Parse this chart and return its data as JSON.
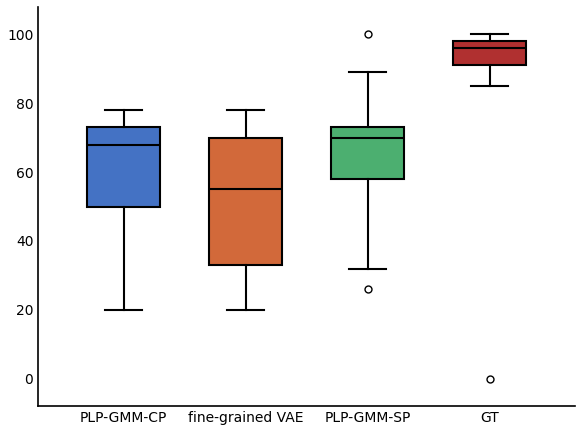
{
  "boxes": [
    {
      "label": "PLP-GMM-CP",
      "color": "#4472C4",
      "q1": 50,
      "median": 68,
      "q3": 73,
      "whisker_low": 20,
      "whisker_high": 78,
      "fliers": []
    },
    {
      "label": "fine-grained VAE",
      "color": "#D2693A",
      "q1": 33,
      "median": 55,
      "q3": 70,
      "whisker_low": 20,
      "whisker_high": 78,
      "fliers": []
    },
    {
      "label": "PLP-GMM-SP",
      "color": "#4CAF70",
      "q1": 58,
      "median": 70,
      "q3": 73,
      "whisker_low": 32,
      "whisker_high": 89,
      "fliers": [
        26,
        100
      ]
    },
    {
      "label": "GT",
      "color": "#B03030",
      "q1": 91,
      "median": 96,
      "q3": 98,
      "whisker_low": 85,
      "whisker_high": 100,
      "fliers": [
        0
      ]
    }
  ],
  "ylim": [
    -8,
    108
  ],
  "yticks": [
    0,
    20,
    40,
    60,
    80,
    100
  ],
  "figsize": [
    5.82,
    4.32
  ],
  "dpi": 100,
  "linewidth": 1.5,
  "box_width": 0.6,
  "flier_marker": "o",
  "flier_size": 5,
  "background_color": "white"
}
